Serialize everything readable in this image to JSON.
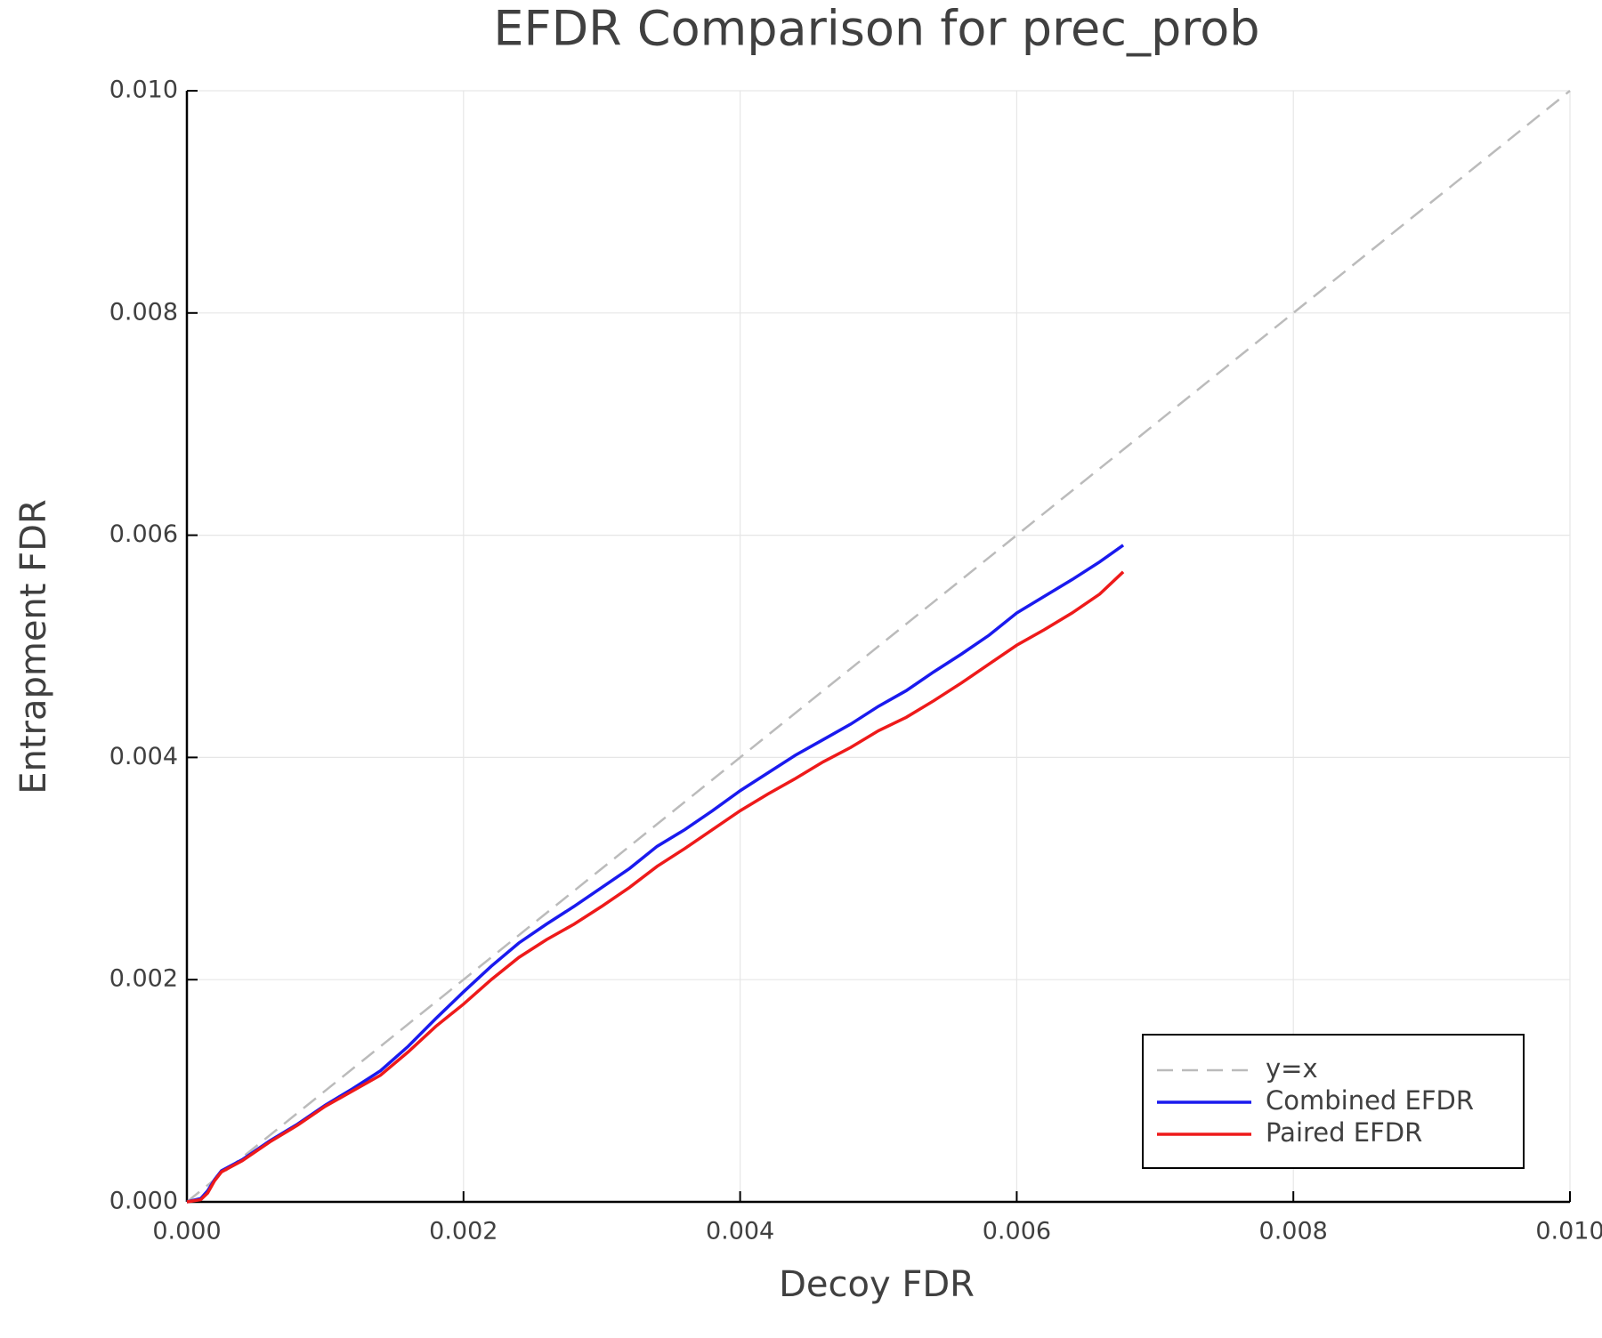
{
  "chart_data": {
    "type": "line",
    "title": "EFDR Comparison for prec_prob",
    "x_label": "Decoy FDR",
    "y_label": "Entrapment FDR",
    "xlim": [
      0,
      0.01
    ],
    "ylim": [
      0,
      0.01
    ],
    "xticks": [
      {
        "value": 0,
        "label": "0.000"
      },
      {
        "value": 0.002,
        "label": "0.002"
      },
      {
        "value": 0.004,
        "label": "0.004"
      },
      {
        "value": 0.006,
        "label": "0.006"
      },
      {
        "value": 0.008,
        "label": "0.008"
      },
      {
        "value": 0.01,
        "label": "0.010"
      }
    ],
    "yticks": [
      {
        "value": 0,
        "label": "0.000"
      },
      {
        "value": 0.002,
        "label": "0.002"
      },
      {
        "value": 0.004,
        "label": "0.004"
      },
      {
        "value": 0.006,
        "label": "0.006"
      },
      {
        "value": 0.008,
        "label": "0.008"
      },
      {
        "value": 0.01,
        "label": "0.010"
      }
    ],
    "grid": true,
    "legend": "lower right",
    "series": [
      {
        "name": "y=x",
        "color": "#bbbbbb",
        "dashed": true,
        "x": [
          0,
          0.01
        ],
        "values": [
          0,
          0.01
        ]
      },
      {
        "name": "Combined EFDR",
        "color": "#1a1aee",
        "x": [
          0,
          0.0001,
          0.00015,
          0.0002,
          0.00025,
          0.0004,
          0.0006,
          0.0008,
          0.001,
          0.0012,
          0.0014,
          0.0016,
          0.0018,
          0.002,
          0.0022,
          0.0024,
          0.0026,
          0.0028,
          0.003,
          0.0032,
          0.0034,
          0.0036,
          0.0038,
          0.004,
          0.0042,
          0.0044,
          0.0046,
          0.0048,
          0.005,
          0.0052,
          0.0054,
          0.0056,
          0.0058,
          0.006,
          0.0062,
          0.0064,
          0.0066,
          0.00677
        ],
        "values": [
          0,
          3e-05,
          0.0001,
          0.0002,
          0.00028,
          0.00038,
          0.00055,
          0.0007,
          0.00087,
          0.00102,
          0.00118,
          0.0014,
          0.00165,
          0.00189,
          0.00212,
          0.00233,
          0.0025,
          0.00266,
          0.00283,
          0.003,
          0.0032,
          0.00335,
          0.00352,
          0.0037,
          0.00386,
          0.00402,
          0.00416,
          0.0043,
          0.00446,
          0.0046,
          0.00477,
          0.00493,
          0.0051,
          0.0053,
          0.00545,
          0.0056,
          0.00576,
          0.00591
        ]
      },
      {
        "name": "Paired EFDR",
        "color": "#ee1a1a",
        "x": [
          0,
          0.0001,
          0.00015,
          0.0002,
          0.00025,
          0.0004,
          0.0006,
          0.0008,
          0.001,
          0.0012,
          0.0014,
          0.0016,
          0.0018,
          0.002,
          0.0022,
          0.0024,
          0.0026,
          0.0028,
          0.003,
          0.0032,
          0.0034,
          0.0036,
          0.0038,
          0.004,
          0.0042,
          0.0044,
          0.0046,
          0.0048,
          0.005,
          0.0052,
          0.0054,
          0.0056,
          0.0058,
          0.006,
          0.0062,
          0.0064,
          0.0066,
          0.00677
        ],
        "values": [
          0,
          2e-05,
          8e-05,
          0.00019,
          0.00027,
          0.00037,
          0.00054,
          0.00069,
          0.00086,
          0.001,
          0.00114,
          0.00135,
          0.00158,
          0.00178,
          0.002,
          0.0022,
          0.00236,
          0.0025,
          0.00266,
          0.00283,
          0.00302,
          0.00318,
          0.00335,
          0.00352,
          0.00367,
          0.00381,
          0.00396,
          0.00409,
          0.00424,
          0.00436,
          0.00451,
          0.00467,
          0.00484,
          0.00501,
          0.00515,
          0.0053,
          0.00547,
          0.00567
        ]
      }
    ]
  }
}
